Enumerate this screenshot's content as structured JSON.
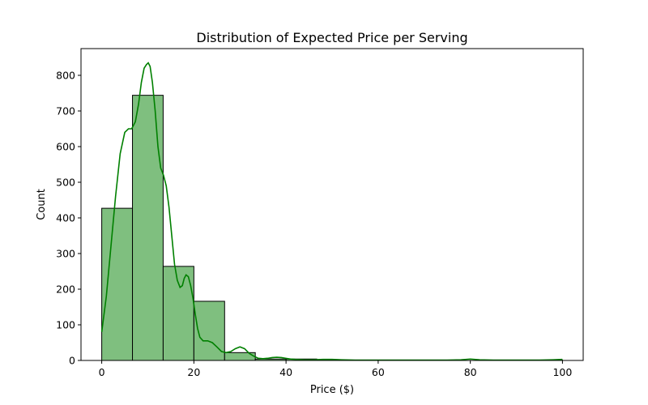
{
  "chart_data": {
    "type": "bar",
    "title": "Distribution of Expected Price per Serving",
    "xlabel": "Price ($)",
    "ylabel": "Count",
    "xlim": [
      -4.5,
      104.5
    ],
    "ylim": [
      0,
      875
    ],
    "x_ticks": [
      0,
      20,
      40,
      60,
      80,
      100
    ],
    "y_ticks": [
      0,
      100,
      200,
      300,
      400,
      500,
      600,
      700,
      800
    ],
    "bin_edges": [
      0,
      6.67,
      13.33,
      20,
      26.67,
      33.33,
      40,
      46.67,
      53.33,
      60,
      66.67,
      73.33,
      80,
      86.67,
      93.33,
      100
    ],
    "counts": [
      427,
      744,
      264,
      166,
      22,
      4,
      4,
      1,
      0,
      0,
      0,
      0,
      0,
      0,
      1
    ],
    "grid": false,
    "colors": {
      "bar_fill": "#7fbf7f",
      "bar_edge": "#000000",
      "kde_line": "#008000"
    },
    "kde": {
      "x": [
        0,
        1,
        2,
        3,
        4,
        5,
        5.8,
        6.5,
        7.3,
        8,
        8.6,
        9.2,
        9.7,
        10.1,
        10.5,
        11,
        11.6,
        12.2,
        12.8,
        13.4,
        14,
        14.6,
        15.2,
        15.8,
        16.4,
        17,
        17.5,
        17.9,
        18.3,
        18.8,
        19.3,
        19.8,
        20.3,
        20.8,
        21.3,
        22,
        23,
        24,
        25,
        26,
        27,
        28,
        29,
        30,
        31,
        32,
        33,
        34,
        35,
        36,
        37,
        38,
        39,
        40,
        41,
        42,
        44,
        46,
        48,
        50,
        52,
        55,
        60,
        65,
        70,
        75,
        78,
        80,
        82,
        85,
        90,
        95,
        98,
        100
      ],
      "y": [
        80,
        180,
        320,
        460,
        580,
        640,
        650,
        650,
        670,
        720,
        780,
        820,
        830,
        835,
        825,
        780,
        700,
        600,
        540,
        520,
        490,
        430,
        350,
        270,
        225,
        205,
        210,
        230,
        240,
        235,
        210,
        175,
        130,
        90,
        65,
        55,
        55,
        50,
        38,
        25,
        22,
        25,
        33,
        38,
        33,
        20,
        12,
        6,
        5,
        6,
        8,
        9,
        8,
        6,
        4,
        3,
        2,
        2,
        3,
        3,
        2,
        1,
        1,
        1,
        1,
        1,
        2,
        4,
        2,
        1,
        1,
        1,
        2,
        3
      ]
    }
  }
}
